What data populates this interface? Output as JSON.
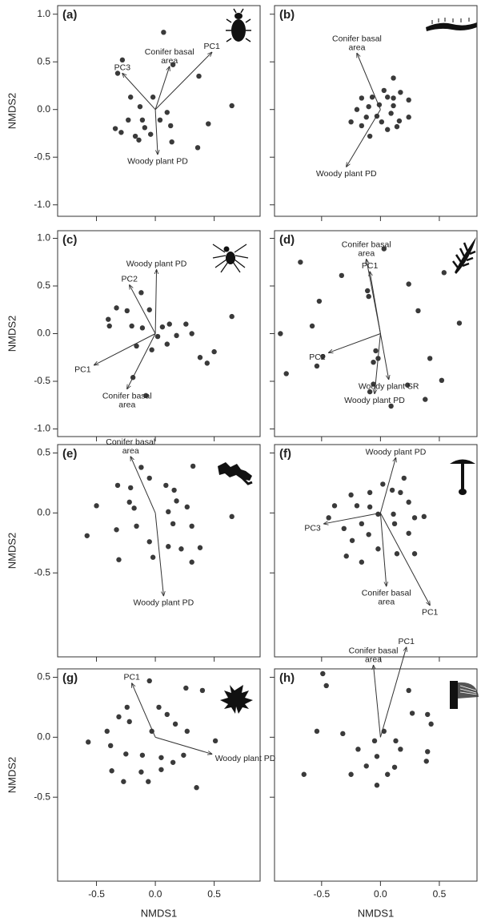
{
  "chart_data": [
    {
      "type": "scatter",
      "panel_label": "(a)",
      "ylabel": "NMDS2",
      "x": [
        0.07,
        -0.28,
        0.15,
        0.37,
        -0.32,
        -0.21,
        -0.13,
        -0.02,
        0.1,
        -0.34,
        -0.23,
        -0.11,
        -0.09,
        -0.29,
        -0.17,
        0.13,
        -0.04,
        0.14,
        0.45,
        0.65,
        0.36,
        -0.14,
        0.04
      ],
      "y": [
        0.81,
        0.52,
        0.47,
        0.35,
        0.38,
        0.13,
        0.03,
        0.13,
        -0.03,
        -0.2,
        -0.11,
        -0.11,
        -0.19,
        -0.24,
        -0.28,
        -0.17,
        -0.26,
        -0.34,
        -0.15,
        0.04,
        -0.4,
        -0.32,
        -0.11
      ],
      "arrows": [
        {
          "label": [
            "PC1"
          ],
          "x": 0.48,
          "y": 0.6
        },
        {
          "label": [
            "Conifer basal",
            "area"
          ],
          "x": 0.12,
          "y": 0.45
        },
        {
          "label": [
            "PC3"
          ],
          "x": -0.28,
          "y": 0.38
        },
        {
          "label": [
            "Woody plant PD"
          ],
          "x": 0.02,
          "y": -0.47
        }
      ],
      "xlim": [
        -0.83,
        0.89
      ],
      "ylim": [
        -1.12,
        1.09
      ],
      "xticks": [
        -0.5,
        0,
        0.5
      ],
      "yticks": [
        {
          "value": -1,
          "label": "-1.0"
        },
        -0.5,
        {
          "value": 0,
          "label": "0.0"
        },
        0.5,
        {
          "value": 1,
          "label": "1.0"
        }
      ]
    },
    {
      "type": "scatter",
      "panel_label": "(b)",
      "x": [
        0.11,
        0.03,
        -0.07,
        -0.16,
        0.06,
        0.17,
        0.24,
        -0.01,
        -0.1,
        -0.2,
        0.11,
        0.09,
        -0.03,
        -0.12,
        -0.25,
        -0.16,
        0.01,
        0.16,
        0.24,
        0.14,
        0.06,
        -0.09,
        0.11
      ],
      "y": [
        0.33,
        0.2,
        0.13,
        0.12,
        0.13,
        0.18,
        0.1,
        0.05,
        0.03,
        0.0,
        0.04,
        -0.04,
        -0.07,
        -0.08,
        -0.13,
        -0.17,
        -0.13,
        -0.12,
        -0.08,
        -0.18,
        -0.21,
        -0.28,
        0.12
      ],
      "arrows": [
        {
          "label": [
            "Conifer basal",
            "area"
          ],
          "x": -0.2,
          "y": 0.59
        },
        {
          "label": [
            "Woody plant PD"
          ],
          "x": -0.29,
          "y": -0.6
        }
      ],
      "xlim": [
        -0.9,
        0.82
      ],
      "ylim": [
        -1.12,
        1.09
      ],
      "xticks": [
        -0.5,
        0,
        0.5
      ],
      "yticks": [
        -1,
        -0.5,
        0,
        0.5,
        1
      ]
    },
    {
      "type": "scatter",
      "panel_label": "(c)",
      "ylabel": "NMDS2",
      "x": [
        -0.12,
        -0.33,
        -0.24,
        -0.05,
        -0.4,
        -0.39,
        -0.2,
        -0.11,
        0.06,
        0.12,
        0.26,
        0.31,
        0.18,
        0.02,
        -0.16,
        0.1,
        0.38,
        0.5,
        0.44,
        -0.19,
        -0.08,
        0.65,
        -0.03
      ],
      "y": [
        0.43,
        0.27,
        0.24,
        0.25,
        0.15,
        0.08,
        0.08,
        0.06,
        0.07,
        0.1,
        0.1,
        0.0,
        -0.02,
        -0.03,
        -0.13,
        -0.11,
        -0.25,
        -0.19,
        -0.31,
        -0.46,
        -0.65,
        0.18,
        -0.17
      ],
      "arrows": [
        {
          "label": [
            "Woody plant PD"
          ],
          "x": 0.01,
          "y": 0.67
        },
        {
          "label": [
            "PC2"
          ],
          "x": -0.22,
          "y": 0.51
        },
        {
          "label": [
            "PC1"
          ],
          "x": -0.52,
          "y": -0.33
        },
        {
          "label": [
            "Conifer basal",
            "area"
          ],
          "x": -0.24,
          "y": -0.58
        }
      ],
      "xlim": [
        -0.83,
        0.89
      ],
      "ylim": [
        -1.08,
        1.08
      ],
      "xticks": [
        -0.5,
        0,
        0.5
      ],
      "yticks": [
        {
          "value": -1,
          "label": "-1.0"
        },
        -0.5,
        {
          "value": 0,
          "label": "0.0"
        },
        0.5,
        {
          "value": 1,
          "label": "1.0"
        }
      ]
    },
    {
      "type": "scatter",
      "panel_label": "(d)",
      "x": [
        0.03,
        -0.68,
        -0.11,
        -0.1,
        -0.33,
        -0.52,
        0.24,
        0.54,
        0.32,
        -0.58,
        0.67,
        -0.85,
        -0.04,
        -0.02,
        -0.06,
        -0.49,
        -0.54,
        -0.8,
        0.42,
        0.52,
        -0.06,
        -0.09,
        0.38,
        0.09,
        0.23
      ],
      "y": [
        0.89,
        0.75,
        0.45,
        0.39,
        0.61,
        0.34,
        0.52,
        0.64,
        0.24,
        0.08,
        0.11,
        0.0,
        -0.18,
        -0.26,
        -0.3,
        -0.24,
        -0.34,
        -0.42,
        -0.26,
        -0.49,
        -0.53,
        -0.61,
        -0.69,
        -0.76,
        -0.54
      ],
      "arrows": [
        {
          "label": [
            "Conifer basal",
            "area"
          ],
          "x": -0.12,
          "y": 0.78
        },
        {
          "label": [
            "PC1"
          ],
          "x": -0.09,
          "y": 0.65
        },
        {
          "label": [
            "PC2"
          ],
          "x": -0.44,
          "y": -0.2
        },
        {
          "label": [
            "Woody plant SR"
          ],
          "x": 0.07,
          "y": -0.48
        },
        {
          "label": [
            "Woody plant PD"
          ],
          "x": -0.05,
          "y": -0.63
        }
      ],
      "xlim": [
        -0.9,
        0.82
      ],
      "ylim": [
        -1.08,
        1.08
      ],
      "xticks": [
        -0.5,
        0,
        0.5
      ],
      "yticks": [
        -1,
        -0.5,
        0,
        0.5,
        1
      ]
    },
    {
      "type": "scatter",
      "panel_label": "(e)",
      "ylabel": "NMDS2",
      "x": [
        -0.05,
        0.32,
        -0.32,
        -0.21,
        0.09,
        0.16,
        -0.5,
        -0.22,
        -0.33,
        -0.16,
        -0.18,
        0.11,
        0.27,
        0.15,
        -0.05,
        0.11,
        0.22,
        -0.02,
        -0.31,
        0.38,
        0.31,
        0.65,
        -0.58,
        -0.12,
        0.18,
        0.31
      ],
      "y": [
        0.29,
        0.39,
        0.23,
        0.21,
        0.23,
        0.19,
        0.06,
        0.09,
        -0.14,
        -0.11,
        0.04,
        0.01,
        0.05,
        -0.09,
        -0.24,
        -0.28,
        -0.3,
        -0.37,
        -0.39,
        -0.29,
        -0.41,
        -0.03,
        -0.19,
        0.38,
        0.1,
        -0.11
      ],
      "arrows": [
        {
          "label": [
            "Conifer basal",
            "area"
          ],
          "x": -0.21,
          "y": 0.47
        },
        {
          "label": [
            "Woody plant PD"
          ],
          "x": 0.07,
          "y": -0.69
        }
      ],
      "xlim": [
        -0.83,
        0.89
      ],
      "ylim": [
        -1.2,
        0.57
      ],
      "xticks": [
        -0.5,
        0,
        0.5
      ],
      "yticks": [
        -0.5,
        {
          "value": 0,
          "label": "0.0"
        },
        0.5
      ]
    },
    {
      "type": "scatter",
      "panel_label": "(f)",
      "x": [
        0.1,
        -0.25,
        -0.09,
        0.02,
        0.17,
        -0.44,
        -0.39,
        -0.2,
        -0.09,
        -0.02,
        0.24,
        0.29,
        0.37,
        0.11,
        0.12,
        0.24,
        -0.16,
        -0.31,
        -0.24,
        -0.1,
        -0.29,
        -0.16,
        -0.02,
        0.14,
        0.29,
        0.2
      ],
      "y": [
        0.19,
        0.15,
        0.17,
        0.24,
        0.17,
        -0.04,
        0.06,
        0.06,
        0.05,
        -0.01,
        0.09,
        -0.04,
        -0.03,
        -0.01,
        -0.09,
        -0.17,
        -0.09,
        -0.13,
        -0.23,
        -0.18,
        -0.36,
        -0.41,
        -0.3,
        -0.34,
        -0.34,
        0.29
      ],
      "arrows": [
        {
          "label": [
            "Woody plant PD"
          ],
          "x": 0.13,
          "y": 0.46
        },
        {
          "label": [
            "PC3"
          ],
          "x": -0.48,
          "y": -0.09
        },
        {
          "label": [
            "Conifer basal",
            "area"
          ],
          "x": 0.05,
          "y": -0.61
        },
        {
          "label": [
            "PC1"
          ],
          "x": 0.42,
          "y": -0.77
        }
      ],
      "xlim": [
        -0.9,
        0.82
      ],
      "ylim": [
        -1.2,
        0.57
      ],
      "xticks": [
        -0.5,
        0,
        0.5
      ],
      "yticks": [
        -0.5,
        0,
        0.5
      ]
    },
    {
      "type": "scatter",
      "panel_label": "(g)",
      "ylabel": "NMDS2",
      "xlabel": "NMDS1",
      "x": [
        -0.05,
        0.26,
        0.4,
        -0.24,
        0.03,
        0.1,
        -0.31,
        -0.22,
        0.17,
        -0.03,
        -0.57,
        -0.41,
        -0.38,
        0.27,
        0.51,
        -0.25,
        -0.11,
        0.05,
        0.24,
        0.15,
        -0.37,
        -0.12,
        0.05,
        -0.27,
        -0.06,
        0.35
      ],
      "y": [
        0.47,
        0.41,
        0.39,
        0.25,
        0.25,
        0.19,
        0.17,
        0.13,
        0.11,
        0.05,
        -0.04,
        0.05,
        -0.07,
        0.05,
        -0.03,
        -0.14,
        -0.15,
        -0.17,
        -0.15,
        -0.21,
        -0.28,
        -0.29,
        -0.27,
        -0.37,
        -0.37,
        -0.42
      ],
      "arrows": [
        {
          "label": [
            "PC1"
          ],
          "x": -0.2,
          "y": 0.45
        },
        {
          "label": [
            "Woody plant PD"
          ],
          "x": 0.48,
          "y": -0.14
        }
      ],
      "xlim": [
        -0.83,
        0.89
      ],
      "ylim": [
        -1.2,
        0.57
      ],
      "xticks": [
        -0.5,
        {
          "value": 0,
          "label": "0.0"
        },
        0.5
      ],
      "yticks": [
        -0.5,
        {
          "value": 0,
          "label": "0.0"
        },
        0.5
      ]
    },
    {
      "type": "scatter",
      "panel_label": "(h)",
      "xlabel": "NMDS1",
      "x": [
        -0.49,
        -0.46,
        0.24,
        0.27,
        0.4,
        -0.54,
        -0.32,
        0.03,
        0.43,
        -0.05,
        0.13,
        -0.19,
        0.17,
        0.4,
        -0.03,
        0.39,
        -0.12,
        0.12,
        -0.25,
        0.06,
        -0.65,
        -0.03
      ],
      "y": [
        0.53,
        0.43,
        0.39,
        0.2,
        0.19,
        0.05,
        0.03,
        0.05,
        0.11,
        -0.03,
        -0.03,
        -0.1,
        -0.1,
        -0.12,
        -0.16,
        -0.2,
        -0.24,
        -0.25,
        -0.31,
        -0.31,
        -0.31,
        -0.4
      ],
      "arrows": [
        {
          "label": [
            "Conifer basal",
            "area"
          ],
          "x": -0.06,
          "y": 0.6
        },
        {
          "label": [
            "PC1"
          ],
          "x": 0.22,
          "y": 0.75
        }
      ],
      "xlim": [
        -0.9,
        0.82
      ],
      "ylim": [
        -1.2,
        0.57
      ],
      "xticks": [
        -0.5,
        {
          "value": 0,
          "label": "0.0"
        },
        0.5
      ],
      "yticks": [
        -0.5,
        0,
        0.5
      ]
    }
  ]
}
